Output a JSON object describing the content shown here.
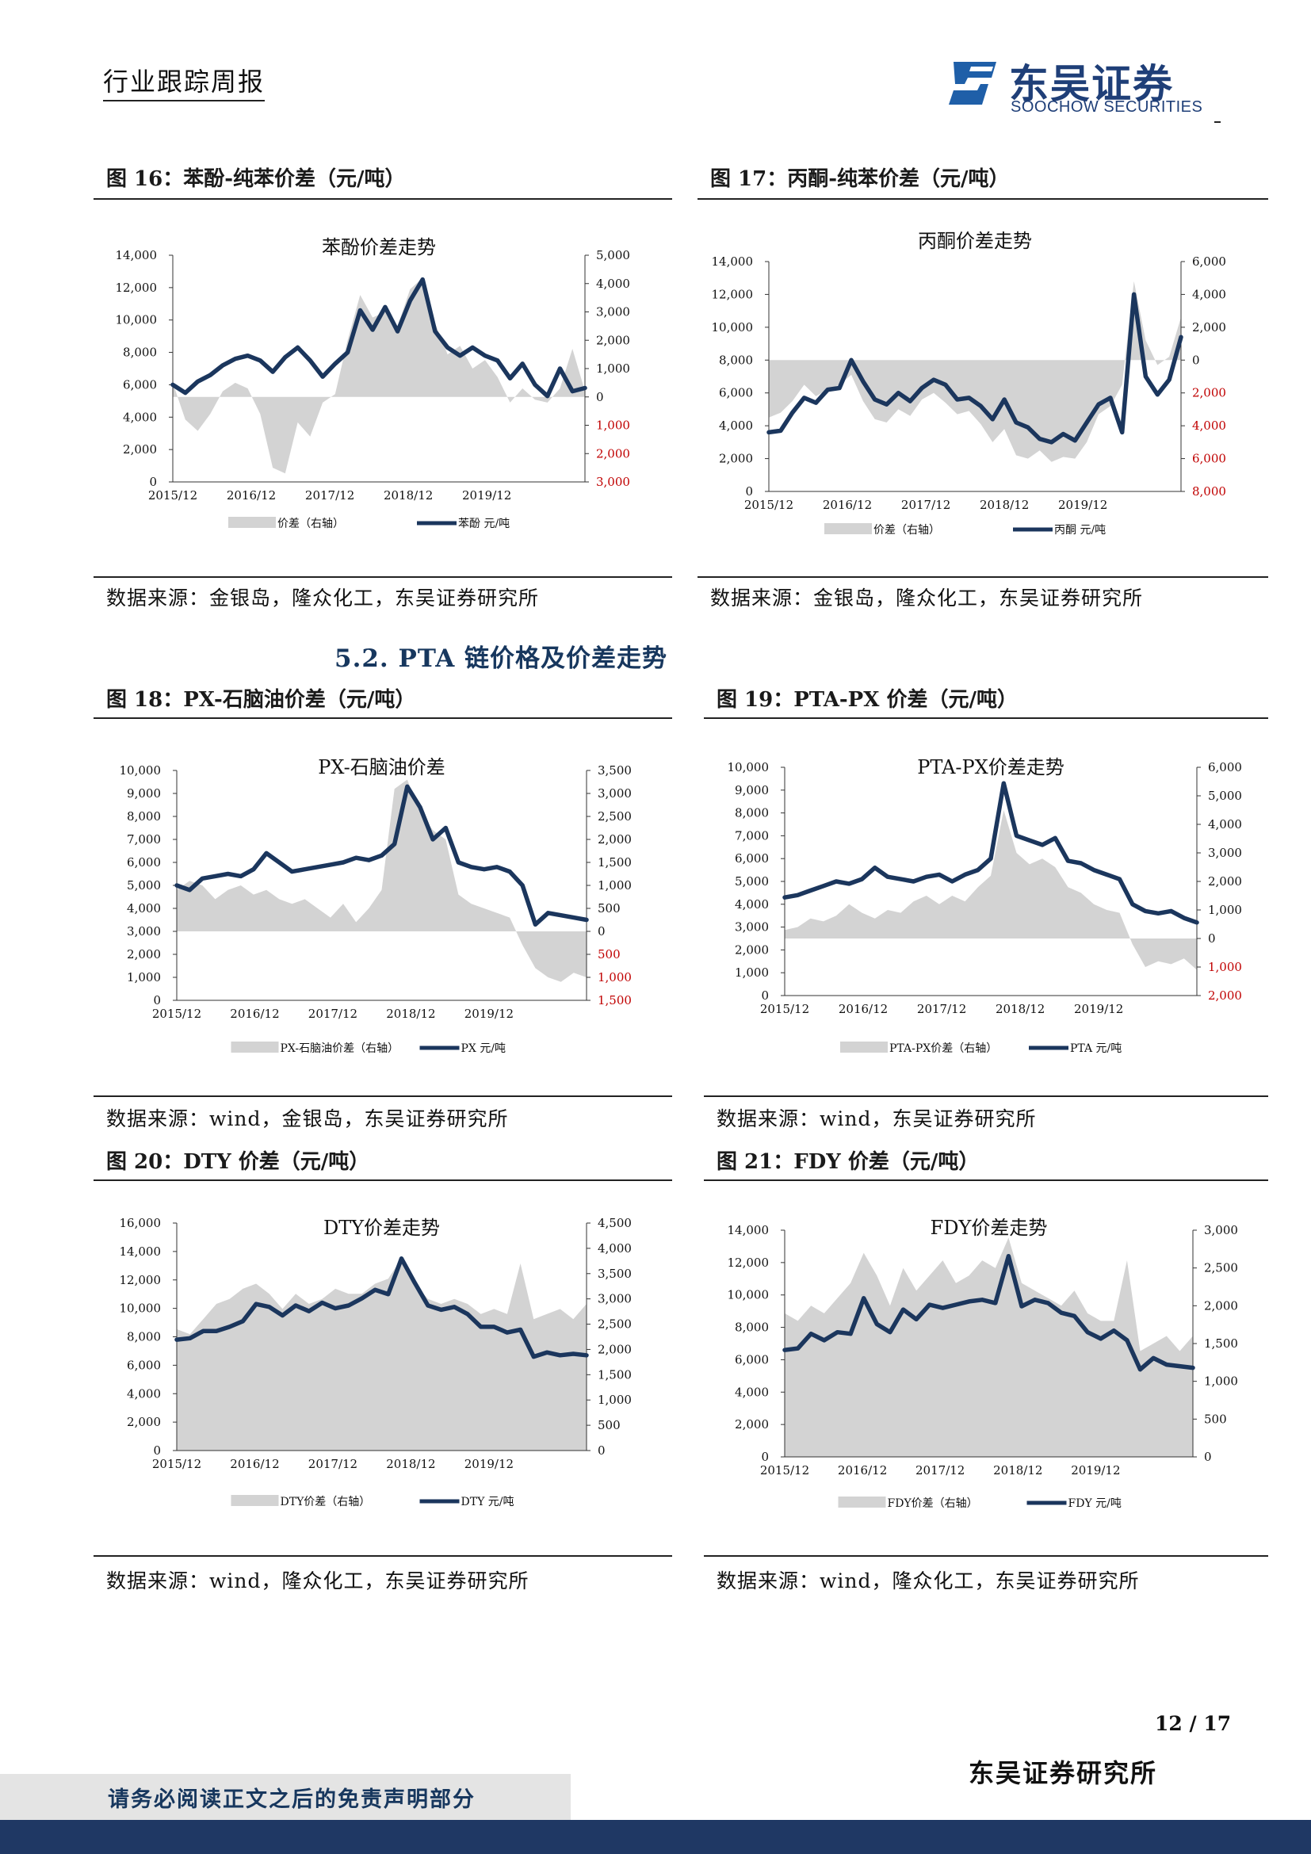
{
  "header": {
    "title": "行业跟踪周报",
    "logo_cn": "东吴证券",
    "logo_en": "SOOCHOW SECURITIES",
    "logo_mark": "SCS"
  },
  "section": {
    "title": "5.2. PTA 链价格及价差走势"
  },
  "colors": {
    "line": "#1b365d",
    "area": "#d3d3d3",
    "neg_axis": "#c00000",
    "bar": "#1f3864"
  },
  "figures": [
    {
      "title": "图 16：苯酚-纯苯价差（元/吨）",
      "source": "数据来源：金银岛，隆众化工，东吴证券研究所",
      "chart_data": {
        "type": "area",
        "title": "苯酚价差走势",
        "x_ticks": [
          "2015/12",
          "2016/12",
          "2017/12",
          "2018/12",
          "2019/12"
        ],
        "left_ticks": [
          "0",
          "2,000",
          "4,000",
          "6,000",
          "8,000",
          "10,000",
          "12,000",
          "14,000"
        ],
        "right_ticks": [
          {
            "label": "5,000",
            "neg": false
          },
          {
            "label": "4,000",
            "neg": false
          },
          {
            "label": "3,000",
            "neg": false
          },
          {
            "label": "2,000",
            "neg": false
          },
          {
            "label": "1,000",
            "neg": false
          },
          {
            "label": "0",
            "neg": false
          },
          {
            "label": "1,000",
            "neg": true
          },
          {
            "label": "2,000",
            "neg": true
          },
          {
            "label": "3,000",
            "neg": true
          }
        ],
        "left_range": [
          0,
          14000
        ],
        "right_range": [
          -3000,
          5000
        ],
        "line_legend": "苯酚 元/吨",
        "area_legend": "价差（右轴）",
        "line": [
          6000,
          5500,
          6200,
          6600,
          7200,
          7600,
          7800,
          7500,
          6800,
          7700,
          8300,
          7500,
          6500,
          7300,
          8000,
          10600,
          9400,
          10800,
          9300,
          11200,
          12500,
          9300,
          8300,
          7800,
          8300,
          7800,
          7500,
          6400,
          7300,
          6000,
          5300,
          7000,
          5600,
          5800
        ],
        "area": [
          500,
          -800,
          -1200,
          -600,
          200,
          500,
          300,
          -600,
          -2500,
          -2700,
          -900,
          -1400,
          -200,
          100,
          2000,
          3600,
          2800,
          3000,
          2500,
          3800,
          4200,
          2600,
          1500,
          1800,
          1000,
          1300,
          700,
          -200,
          300,
          -100,
          -200,
          300,
          1700,
          200
        ]
      }
    },
    {
      "title": "图 17：丙酮-纯苯价差（元/吨）",
      "source": "数据来源：金银岛，隆众化工，东吴证券研究所",
      "chart_data": {
        "type": "area",
        "title": "丙酮价差走势",
        "x_ticks": [
          "2015/12",
          "2016/12",
          "2017/12",
          "2018/12",
          "2019/12"
        ],
        "left_ticks": [
          "0",
          "2,000",
          "4,000",
          "6,000",
          "8,000",
          "10,000",
          "12,000",
          "14,000"
        ],
        "right_ticks": [
          {
            "label": "6,000",
            "neg": false
          },
          {
            "label": "4,000",
            "neg": false
          },
          {
            "label": "2,000",
            "neg": false
          },
          {
            "label": "0",
            "neg": false
          },
          {
            "label": "2,000",
            "neg": true
          },
          {
            "label": "4,000",
            "neg": true
          },
          {
            "label": "6,000",
            "neg": true
          },
          {
            "label": "8,000",
            "neg": true
          }
        ],
        "left_range": [
          0,
          14000
        ],
        "right_range": [
          -8000,
          6000
        ],
        "line_legend": "丙酮 元/吨",
        "area_legend": "价差（右轴）",
        "line": [
          3600,
          3700,
          4800,
          5700,
          5400,
          6200,
          6300,
          8000,
          6700,
          5600,
          5300,
          6000,
          5500,
          6300,
          6800,
          6500,
          5600,
          5700,
          5200,
          4400,
          5600,
          4200,
          3900,
          3200,
          3000,
          3500,
          3100,
          4200,
          5300,
          5700,
          3600,
          12000,
          7000,
          5900,
          6800,
          9400
        ],
        "area": [
          -3500,
          -3200,
          -2500,
          -1500,
          -2200,
          -1800,
          -1500,
          -900,
          -2500,
          -3600,
          -3800,
          -3000,
          -3400,
          -2400,
          -2000,
          -2600,
          -3300,
          -3100,
          -3900,
          -5000,
          -4200,
          -5800,
          -6000,
          -5500,
          -6200,
          -5900,
          -6000,
          -5000,
          -3300,
          -2800,
          -1500,
          4800,
          1200,
          -300,
          200,
          2600
        ]
      }
    },
    {
      "title": "图 18：PX-石脑油价差（元/吨）",
      "source": "数据来源：wind，金银岛，东吴证券研究所",
      "chart_data": {
        "type": "area",
        "title": "PX-石脑油价差",
        "x_ticks": [
          "2015/12",
          "2016/12",
          "2017/12",
          "2018/12",
          "2019/12"
        ],
        "left_ticks": [
          "0",
          "1,000",
          "2,000",
          "3,000",
          "4,000",
          "5,000",
          "6,000",
          "7,000",
          "8,000",
          "9,000",
          "10,000"
        ],
        "right_ticks": [
          {
            "label": "3,500",
            "neg": false
          },
          {
            "label": "3,000",
            "neg": false
          },
          {
            "label": "2,500",
            "neg": false
          },
          {
            "label": "2,000",
            "neg": false
          },
          {
            "label": "1,500",
            "neg": false
          },
          {
            "label": "1,000",
            "neg": false
          },
          {
            "label": "500",
            "neg": false
          },
          {
            "label": "0",
            "neg": false
          },
          {
            "label": "500",
            "neg": true
          },
          {
            "label": "1,000",
            "neg": true
          },
          {
            "label": "1,500",
            "neg": true
          }
        ],
        "left_range": [
          0,
          10000
        ],
        "right_range": [
          -1500,
          3500
        ],
        "line_legend": "PX 元/吨",
        "area_legend": "PX-石脑油价差（右轴）",
        "line": [
          5000,
          4800,
          5300,
          5400,
          5500,
          5400,
          5700,
          6400,
          6000,
          5600,
          5700,
          5800,
          5900,
          6000,
          6200,
          6100,
          6300,
          6800,
          9300,
          8400,
          7000,
          7500,
          6000,
          5800,
          5700,
          5800,
          5600,
          5000,
          3300,
          3800,
          3700,
          3600,
          3500
        ],
        "area": [
          900,
          1100,
          1000,
          700,
          900,
          1000,
          800,
          900,
          700,
          600,
          700,
          500,
          300,
          600,
          200,
          500,
          900,
          3100,
          3300,
          2600,
          2200,
          2000,
          800,
          600,
          500,
          400,
          300,
          -300,
          -800,
          -1000,
          -1100,
          -900,
          -1000
        ]
      }
    },
    {
      "title": "图 19：PTA-PX 价差（元/吨）",
      "source": "数据来源：wind，东吴证券研究所",
      "chart_data": {
        "type": "area",
        "title": "PTA-PX价差走势",
        "x_ticks": [
          "2015/12",
          "2016/12",
          "2017/12",
          "2018/12",
          "2019/12"
        ],
        "left_ticks": [
          "0",
          "1,000",
          "2,000",
          "3,000",
          "4,000",
          "5,000",
          "6,000",
          "7,000",
          "8,000",
          "9,000",
          "10,000"
        ],
        "right_ticks": [
          {
            "label": "6,000",
            "neg": false
          },
          {
            "label": "5,000",
            "neg": false
          },
          {
            "label": "4,000",
            "neg": false
          },
          {
            "label": "3,000",
            "neg": false
          },
          {
            "label": "2,000",
            "neg": false
          },
          {
            "label": "1,000",
            "neg": false
          },
          {
            "label": "0",
            "neg": false
          },
          {
            "label": "1,000",
            "neg": true
          },
          {
            "label": "2,000",
            "neg": true
          }
        ],
        "left_range": [
          0,
          10000
        ],
        "right_range": [
          -2000,
          6000
        ],
        "line_legend": "PTA 元/吨",
        "area_legend": "PTA-PX价差（右轴）",
        "line": [
          4300,
          4400,
          4600,
          4800,
          5000,
          4900,
          5100,
          5600,
          5200,
          5100,
          5000,
          5200,
          5300,
          5000,
          5300,
          5500,
          6000,
          9300,
          7000,
          6800,
          6600,
          6900,
          5900,
          5800,
          5500,
          5300,
          5100,
          4000,
          3700,
          3600,
          3700,
          3400,
          3200
        ],
        "area": [
          300,
          400,
          700,
          600,
          800,
          1200,
          900,
          700,
          1000,
          900,
          1300,
          1500,
          1200,
          1500,
          1300,
          1800,
          2200,
          4500,
          3000,
          2600,
          2800,
          2500,
          1800,
          1600,
          1200,
          1000,
          900,
          -200,
          -1000,
          -800,
          -900,
          -700,
          -1100
        ]
      }
    },
    {
      "title": "图 20：DTY 价差（元/吨）",
      "source": "数据来源：wind，隆众化工，东吴证券研究所",
      "chart_data": {
        "type": "area",
        "title": "DTY价差走势",
        "x_ticks": [
          "2015/12",
          "2016/12",
          "2017/12",
          "2018/12",
          "2019/12"
        ],
        "left_ticks": [
          "0",
          "2,000",
          "4,000",
          "6,000",
          "8,000",
          "10,000",
          "12,000",
          "14,000",
          "16,000"
        ],
        "right_ticks": [
          {
            "label": "4,500",
            "neg": false
          },
          {
            "label": "4,000",
            "neg": false
          },
          {
            "label": "3,500",
            "neg": false
          },
          {
            "label": "3,000",
            "neg": false
          },
          {
            "label": "2,500",
            "neg": false
          },
          {
            "label": "2,000",
            "neg": false
          },
          {
            "label": "1,500",
            "neg": false
          },
          {
            "label": "1,000",
            "neg": false
          },
          {
            "label": "500",
            "neg": false
          },
          {
            "label": "0",
            "neg": false
          }
        ],
        "left_range": [
          0,
          16000
        ],
        "right_range": [
          0,
          4500
        ],
        "line_legend": "DTY 元/吨",
        "area_legend": "DTY价差（右轴）",
        "line": [
          7800,
          7900,
          8400,
          8400,
          8700,
          9100,
          10300,
          10100,
          9500,
          10200,
          9800,
          10400,
          10000,
          10200,
          10700,
          11300,
          11000,
          13500,
          11800,
          10200,
          9900,
          10100,
          9600,
          8700,
          8700,
          8300,
          8500,
          6600,
          6900,
          6700,
          6800,
          6700
        ],
        "area": [
          2400,
          2300,
          2600,
          2900,
          3000,
          3200,
          3300,
          3100,
          2800,
          3100,
          2900,
          3000,
          3200,
          3100,
          3100,
          3300,
          3400,
          3800,
          3300,
          3000,
          2900,
          3000,
          2900,
          2700,
          2800,
          2700,
          3700,
          2600,
          2700,
          2800,
          2600,
          2900
        ]
      }
    },
    {
      "title": "图 21：FDY 价差（元/吨）",
      "source": "数据来源：wind，隆众化工，东吴证券研究所",
      "chart_data": {
        "type": "area",
        "title": "FDY价差走势",
        "x_ticks": [
          "2015/12",
          "2016/12",
          "2017/12",
          "2018/12",
          "2019/12"
        ],
        "left_ticks": [
          "0",
          "2,000",
          "4,000",
          "6,000",
          "8,000",
          "10,000",
          "12,000",
          "14,000"
        ],
        "right_ticks": [
          {
            "label": "3,000",
            "neg": false
          },
          {
            "label": "2,500",
            "neg": false
          },
          {
            "label": "2,000",
            "neg": false
          },
          {
            "label": "1,500",
            "neg": false
          },
          {
            "label": "1,000",
            "neg": false
          },
          {
            "label": "500",
            "neg": false
          },
          {
            "label": "0",
            "neg": false
          }
        ],
        "left_range": [
          0,
          14000
        ],
        "right_range": [
          0,
          3000
        ],
        "line_legend": "FDY 元/吨",
        "area_legend": "FDY价差（右轴）",
        "line": [
          6600,
          6700,
          7600,
          7200,
          7700,
          7600,
          9800,
          8200,
          7700,
          9100,
          8500,
          9400,
          9200,
          9400,
          9600,
          9700,
          9500,
          12400,
          9300,
          9700,
          9500,
          8900,
          8700,
          7700,
          7300,
          7800,
          7200,
          5400,
          6100,
          5700,
          5600,
          5500
        ],
        "area": [
          1900,
          1800,
          2000,
          1900,
          2100,
          2300,
          2700,
          2400,
          2000,
          2500,
          2200,
          2400,
          2600,
          2300,
          2400,
          2600,
          2500,
          2900,
          2300,
          2200,
          2100,
          2000,
          2200,
          1900,
          1800,
          1800,
          2600,
          1400,
          1500,
          1600,
          1400,
          1600
        ]
      }
    }
  ],
  "footer": {
    "page": "12 / 17",
    "brand": "东吴证券研究所",
    "disclaimer": "请务必阅读正文之后的免责声明部分"
  }
}
